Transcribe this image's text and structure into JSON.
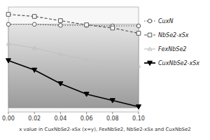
{
  "chart_data": {
    "type": "line",
    "x": [
      0.0,
      0.02,
      0.04,
      0.06,
      0.08,
      0.1
    ],
    "series": [
      {
        "name": "CuxN",
        "color": "#555555",
        "marker": "circle",
        "line_style": "dotted",
        "values": [
          0.3285,
          0.3285,
          0.3275,
          0.3275,
          0.327,
          0.327
        ]
      },
      {
        "name": "NbSe2-xSx",
        "color": "#555555",
        "marker": "square",
        "line_style": "dashed",
        "values": [
          0.338,
          0.336,
          0.332,
          0.328,
          0.325,
          0.32
        ]
      },
      {
        "name": "FexNbSe2",
        "color": "#c0c0c0",
        "marker": "triangle-up",
        "line_style": "solid",
        "values": [
          0.31,
          0.306,
          0.3,
          0.295,
          0.291,
          0.289
        ]
      },
      {
        "name": "CuxNbSe2-xSx",
        "color": "#000000",
        "marker": "triangle-down",
        "line_style": "solid",
        "values": [
          0.294,
          0.285,
          0.272,
          0.262,
          0.256,
          0.25
        ]
      }
    ],
    "band": {
      "y_from": 0.249,
      "y_to": 0.3285
    },
    "xlim": [
      0.0,
      0.1
    ],
    "ylim": [
      0.245,
      0.345
    ],
    "xticks": [
      {
        "value": 0.0,
        "label": "0.00"
      },
      0.02,
      0.04,
      0.06,
      0.08,
      {
        "value": 0.1,
        "label": "0.10"
      }
    ],
    "xlabel": "x value in CuxNbSe2-xSx (x=y), FexNbSe2, NbSe2-xSx and CuxNbSe2",
    "tick_labels": "x",
    "legend": "right"
  }
}
